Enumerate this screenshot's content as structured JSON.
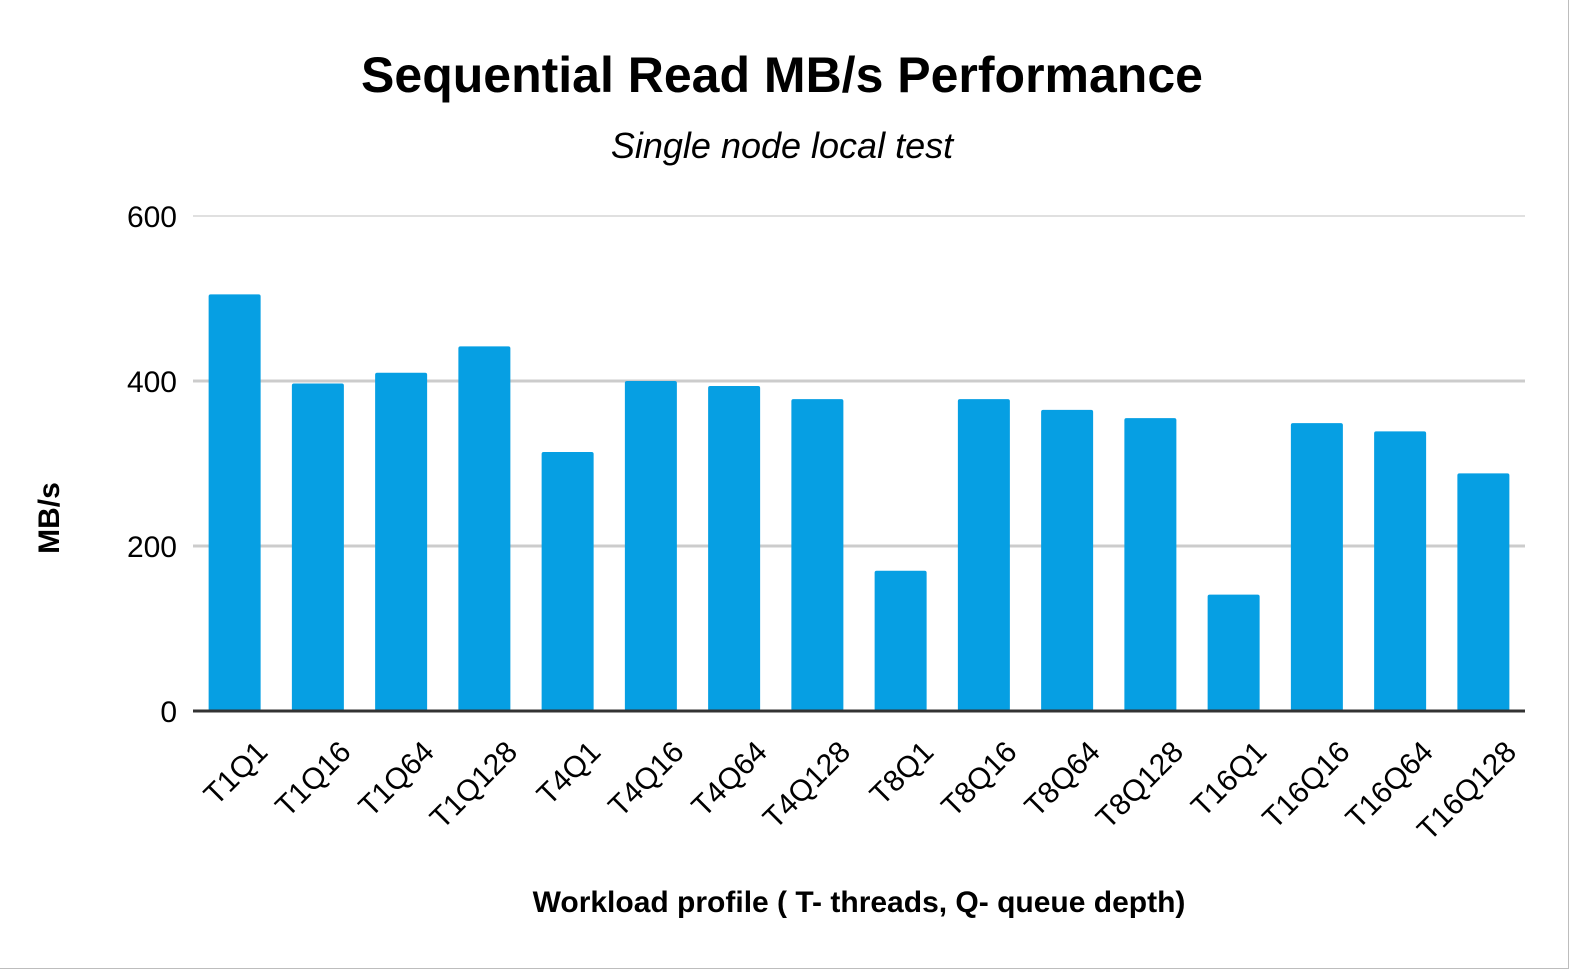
{
  "chart_data": {
    "type": "bar",
    "title": "Sequential Read MB/s Performance",
    "subtitle": "Single node local test",
    "xlabel": "Workload profile ( T- threads, Q- queue depth)",
    "ylabel": "MB/s",
    "ylim": [
      0,
      600
    ],
    "yticks": [
      0,
      200,
      400,
      600
    ],
    "grid": true,
    "legend": "none",
    "bar_color": "#069fe3",
    "categories": [
      "T1Q1",
      "T1Q16",
      "T1Q64",
      "T1Q128",
      "T4Q1",
      "T4Q16",
      "T4Q64",
      "T4Q128",
      "T8Q1",
      "T8Q16",
      "T8Q64",
      "T8Q128",
      "T16Q1",
      "T16Q16",
      "T16Q64",
      "T16Q128"
    ],
    "values": [
      505,
      397,
      410,
      442,
      314,
      400,
      394,
      378,
      170,
      378,
      365,
      355,
      141,
      349,
      339,
      288
    ]
  }
}
